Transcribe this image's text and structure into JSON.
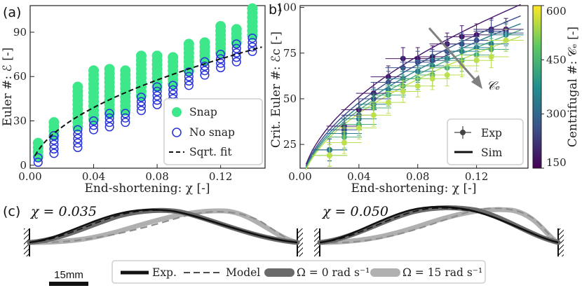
{
  "panel_labels": {
    "a": "(a)",
    "b": "b)",
    "c": "(c)"
  },
  "colors": {
    "snap": "#3ee88a",
    "nosnap": "#2a35d8",
    "fit": "#111111",
    "sim_dark": "#3a1f68",
    "arrow": "#808080"
  },
  "colorbar": {
    "label": "Centrifugal #: 𝒞ₑ [-]",
    "ticks": [
      "600",
      "450",
      "300",
      "150"
    ],
    "range": [
      150,
      600
    ],
    "colors": [
      "#440154",
      "#3b528b",
      "#21908d",
      "#5dc863",
      "#fde725"
    ]
  },
  "arrow_label": "𝒞ₑ",
  "chart_data": [
    {
      "type": "scatter",
      "panel": "(a)",
      "xlabel": "End-shortening: χ [-]",
      "ylabel": "Euler #: ℰ [-]",
      "xlim": [
        0.0,
        0.148
      ],
      "ylim": [
        -2,
        108
      ],
      "xticks": [
        "0.00",
        "0.04",
        "0.08",
        "0.12"
      ],
      "xtick_values": [
        0.0,
        0.04,
        0.08,
        0.12
      ],
      "yticks": [
        "0",
        "30",
        "60",
        "90"
      ],
      "ytick_values": [
        0,
        30,
        60,
        90
      ],
      "legend": {
        "placement": "bottom-right",
        "entries": [
          "Snap",
          "No snap",
          "Sqrt. fit"
        ]
      },
      "x": [
        0.005,
        0.015,
        0.03,
        0.04,
        0.05,
        0.06,
        0.07,
        0.08,
        0.09,
        0.1,
        0.11,
        0.12,
        0.13,
        0.14
      ],
      "series": [
        {
          "name": "Snap",
          "marker": "filled-circle",
          "y_ranges": [
            [
              6,
              17
            ],
            [
              20,
              29
            ],
            [
              26,
              54
            ],
            [
              31,
              66
            ],
            [
              35,
              66
            ],
            [
              37,
              65
            ],
            [
              47,
              75
            ],
            [
              53,
              75
            ],
            [
              55,
              75
            ],
            [
              64,
              84
            ],
            [
              71,
              84
            ],
            [
              76,
              94
            ],
            [
              83,
              94
            ],
            [
              88,
              107
            ]
          ]
        },
        {
          "name": "No snap",
          "marker": "open-circle",
          "y_ranges": [
            [
              2,
              6
            ],
            [
              8,
              20
            ],
            [
              12,
              26
            ],
            [
              24,
              31
            ],
            [
              26,
              35
            ],
            [
              29,
              37
            ],
            [
              37,
              47
            ],
            [
              41,
              53
            ],
            [
              45,
              55
            ],
            [
              54,
              64
            ],
            [
              61,
              71
            ],
            [
              66,
              76
            ],
            [
              70,
              83
            ],
            [
              77,
              88
            ]
          ]
        },
        {
          "name": "Sqrt. fit",
          "line": "dashed",
          "function": "y = 225*sqrt(x) - 6"
        }
      ]
    },
    {
      "type": "line",
      "panel": "b)",
      "xlabel": "End-shortening: χ [-]",
      "ylabel": "Crit. Euler #: ℰc [-]",
      "xlim": [
        0.0,
        0.155
      ],
      "ylim": [
        12,
        101
      ],
      "xticks": [
        "0.00",
        "0.04",
        "0.08",
        "0.12"
      ],
      "xtick_values": [
        0.0,
        0.04,
        0.08,
        0.12
      ],
      "yticks": [
        "25",
        "50",
        "75",
        "100"
      ],
      "ytick_values": [
        25,
        50,
        75,
        100
      ],
      "legend": {
        "placement": "bottom-right",
        "entries": [
          "Exp",
          "Sim"
        ]
      },
      "x": [
        0.02,
        0.03,
        0.04,
        0.05,
        0.06,
        0.07,
        0.08,
        0.09,
        0.1,
        0.11,
        0.12,
        0.13,
        0.14
      ],
      "series": [
        {
          "name": "Ce=150",
          "color": "#46166b",
          "y": [
            22,
            35,
            44,
            53,
            62,
            72,
            72,
            73,
            80,
            84,
            85,
            88,
            88
          ]
        },
        {
          "name": "Ce=250",
          "color": "#3b4b8c",
          "y": [
            22,
            33,
            41,
            50,
            59,
            67,
            70,
            71,
            76,
            80,
            82,
            87,
            86
          ]
        },
        {
          "name": "Ce=350",
          "color": "#2a7d8c",
          "y": [
            22,
            31,
            39,
            47,
            55,
            61,
            65,
            68,
            72,
            76,
            78,
            80,
            85
          ]
        },
        {
          "name": "Ce=450",
          "color": "#4cae7a",
          "y": [
            19,
            29,
            36,
            45,
            52,
            57,
            61,
            63,
            67,
            71,
            74,
            77,
            82
          ]
        },
        {
          "name": "Ce=600",
          "color": "#bde04e",
          "y": [
            19,
            26,
            34,
            41,
            48,
            54,
            57,
            61,
            63,
            68,
            71,
            73,
            82
          ]
        }
      ],
      "sim_curves": [
        {
          "color": "#46166b",
          "c": 270
        },
        {
          "color": "#3b4b8c",
          "c": 254
        },
        {
          "color": "#2a7d8c",
          "c": 243
        },
        {
          "color": "#4cae7a",
          "c": 234
        },
        {
          "color": "#bde04e",
          "c": 225
        }
      ]
    }
  ],
  "panel_c": {
    "left_label": "χ = 0.035",
    "right_label": "χ = 0.050",
    "scale_bar": "15mm",
    "legend": {
      "exp": "Exp.",
      "model": "Model",
      "omega0": "Ω = 0 rad s⁻¹",
      "omega15": "Ω = 15 rad s⁻¹"
    }
  }
}
